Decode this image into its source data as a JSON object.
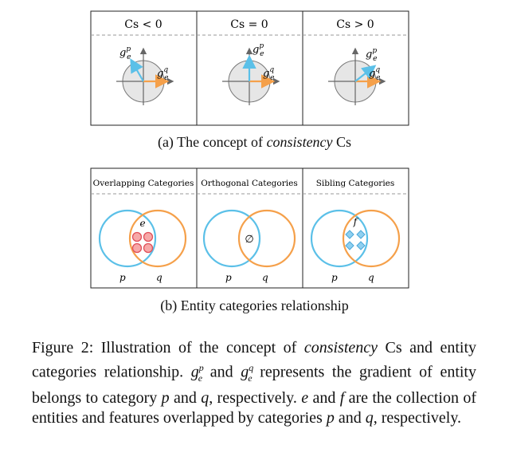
{
  "figure_a": {
    "panels": [
      {
        "title": "Cs < 0",
        "gp_label": "g",
        "gq_label": "g",
        "gp_angle_deg": 120
      },
      {
        "title": "Cs = 0",
        "gp_label": "g",
        "gq_label": "g",
        "gp_angle_deg": 90
      },
      {
        "title": "Cs > 0",
        "gp_label": "g",
        "gq_label": "g",
        "gp_angle_deg": 38
      }
    ],
    "caption": "(a) The concept of consistency Cs"
  },
  "figure_b": {
    "panels": [
      {
        "title": "Overlapping Categories",
        "set_label": "e",
        "p_label": "p",
        "q_label": "q"
      },
      {
        "title": "Orthogonal Categories",
        "set_label": "∅",
        "p_label": "p",
        "q_label": "q"
      },
      {
        "title": "Sibling Categories",
        "set_label": "f",
        "p_label": "p",
        "q_label": "q"
      }
    ],
    "caption": "(b) Entity categories relationship"
  },
  "caption": {
    "prefix": "Figure 2: Illustration of the concept of ",
    "italic_word": "consistency",
    "text": " Cs and entity categories relationship. g^p_e and g^q_e represents the gradient of entity belongs to category p and q, respectively. e and f are the collection of entities and features overlapped by categories p and q, respectively."
  },
  "colors": {
    "blue": "#5bc0e8",
    "orange": "#f5a04a",
    "red_fill": "#f7a8a8",
    "red_stroke": "#e0505a",
    "diamond": "#8fd0f0",
    "disk": "#e6e6e6",
    "axis": "#666666"
  }
}
